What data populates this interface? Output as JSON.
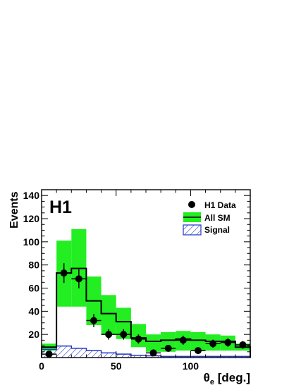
{
  "chart_data": {
    "type": "bar",
    "experiment_label": "H1",
    "xlabel": "θe [deg.]",
    "xlabel_symbol": "θ",
    "xlabel_subscript": "e",
    "xlabel_unit": "[deg.]",
    "ylabel": "Events",
    "xlim": [
      0,
      140
    ],
    "ylim": [
      0,
      145
    ],
    "xticks": [
      0,
      50,
      100
    ],
    "yticks": [
      20,
      40,
      60,
      80,
      100,
      120,
      140
    ],
    "grid": false,
    "legend_position": "top-right",
    "legend": [
      {
        "label": "H1 Data",
        "style": "marker"
      },
      {
        "label": "All SM",
        "style": "band-line"
      },
      {
        "label": "Signal",
        "style": "hatched"
      }
    ],
    "colors": {
      "band": "#22ee22",
      "sm_line": "#000000",
      "signal": "#2233cc",
      "data": "#000000"
    },
    "bins": [
      [
        0,
        10
      ],
      [
        10,
        20
      ],
      [
        20,
        30
      ],
      [
        30,
        40
      ],
      [
        40,
        50
      ],
      [
        50,
        60
      ],
      [
        60,
        70
      ],
      [
        70,
        80
      ],
      [
        80,
        90
      ],
      [
        90,
        100
      ],
      [
        100,
        110
      ],
      [
        110,
        120
      ],
      [
        120,
        130
      ],
      [
        130,
        140
      ]
    ],
    "series": [
      {
        "name": "All SM",
        "values": [
          9,
          73,
          77,
          49,
          38,
          31,
          17,
          14,
          15,
          16,
          15,
          14,
          14,
          9
        ],
        "band_low": [
          6,
          44,
          44,
          28,
          20,
          16,
          9,
          5,
          5,
          6,
          6,
          6,
          6,
          6
        ],
        "band_high": [
          12,
          101,
          111,
          70,
          54,
          43,
          29,
          20,
          22,
          23,
          22,
          20,
          19,
          12
        ]
      },
      {
        "name": "Signal",
        "values": [
          7,
          10,
          8,
          6,
          4,
          3,
          2,
          1.5,
          1,
          1,
          1,
          1,
          1,
          1
        ]
      },
      {
        "name": "H1 Data",
        "x": [
          5,
          15,
          25,
          35,
          45,
          55,
          65,
          75,
          85,
          95,
          105,
          115,
          125,
          135
        ],
        "values": [
          3,
          73,
          68,
          32,
          20,
          20,
          16,
          4,
          8,
          15,
          6,
          12,
          13,
          11
        ],
        "errors": [
          2,
          8.5,
          8.2,
          5.7,
          4.5,
          4.5,
          4,
          2,
          2.8,
          3.9,
          2.4,
          3.5,
          3.6,
          3.3
        ]
      }
    ]
  }
}
